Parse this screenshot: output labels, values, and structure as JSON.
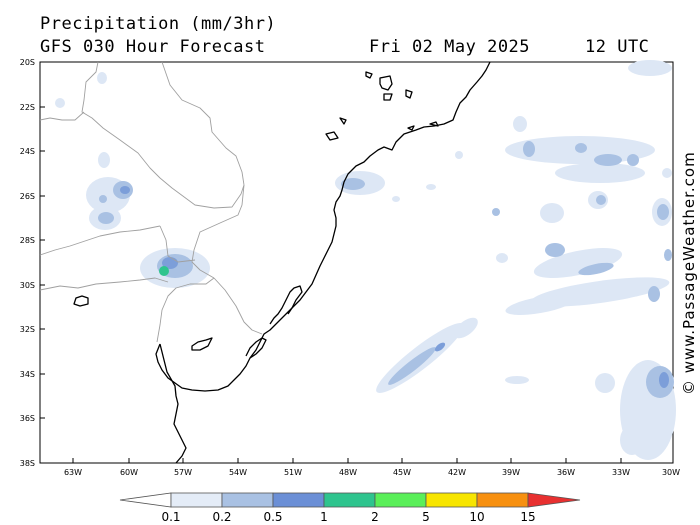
{
  "header": {
    "title": "Precipitation (mm/3hr)",
    "subtitle": "GFS 030 Hour Forecast",
    "date": "Fri 02 May 2025",
    "time": "12 UTC"
  },
  "credit": "© www.PassageWeather.com",
  "map": {
    "lon_range": [
      -65,
      -30
    ],
    "lat_range": [
      -38,
      -20
    ],
    "lon_ticks": [
      "63W",
      "60W",
      "57W",
      "54W",
      "51W",
      "48W",
      "45W",
      "42W",
      "39W",
      "36W",
      "33W",
      "30W"
    ],
    "lat_ticks": [
      "20S",
      "22S",
      "24S",
      "26S",
      "28S",
      "30S",
      "32S",
      "34S",
      "36S",
      "38S"
    ]
  },
  "legend": {
    "labels": [
      "0.1",
      "0.2",
      "0.5",
      "1",
      "2",
      "5",
      "10",
      "15"
    ],
    "colors": [
      "#ffffff",
      "#e4ecf7",
      "#a9c1e3",
      "#6b8fd6",
      "#2ec48e",
      "#5aef59",
      "#f7e500",
      "#f79010",
      "#e83030"
    ]
  },
  "colors": {
    "light_rain": "#dde7f5",
    "moderate_rain": "#a9c1e3",
    "heavier_rain": "#7c9ed9",
    "green_cell": "#2ec48e",
    "coastline": "#000000",
    "borders": "#a0a0a0"
  }
}
